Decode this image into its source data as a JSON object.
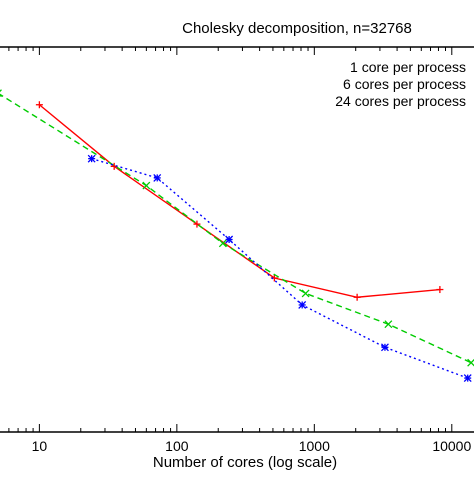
{
  "chart_data": {
    "type": "line",
    "title": "Cholesky decomposition, n=32768",
    "xlabel": "Number of cores (log scale)",
    "ylabel": "",
    "x_scale": "log",
    "xlim": [
      5,
      15000
    ],
    "ylim": [
      0,
      1
    ],
    "x_ticks": [
      {
        "value": 10,
        "label": "10"
      },
      {
        "value": 100,
        "label": "100"
      },
      {
        "value": 1000,
        "label": "1000"
      },
      {
        "value": 10000,
        "label": "10000"
      }
    ],
    "grid": false,
    "legend_position": "top-right",
    "series": [
      {
        "name": "1 core per process",
        "color": "#ff0000",
        "line": "solid",
        "marker": "plus",
        "x": [
          10,
          35,
          140,
          512,
          2048,
          8192
        ],
        "y": [
          0.85,
          0.69,
          0.54,
          0.4,
          0.35,
          0.37
        ]
      },
      {
        "name": "6 cores per process",
        "color": "#00cc00",
        "line": "dashed",
        "marker": "cross",
        "x": [
          5,
          60,
          216,
          864,
          3456,
          13824
        ],
        "y": [
          0.88,
          0.64,
          0.49,
          0.36,
          0.28,
          0.18
        ]
      },
      {
        "name": "24 cores per process",
        "color": "#0000ff",
        "line": "dotted",
        "marker": "star",
        "x": [
          24,
          72,
          240,
          816,
          3264,
          13056
        ],
        "y": [
          0.71,
          0.66,
          0.5,
          0.33,
          0.22,
          0.14
        ]
      }
    ]
  }
}
